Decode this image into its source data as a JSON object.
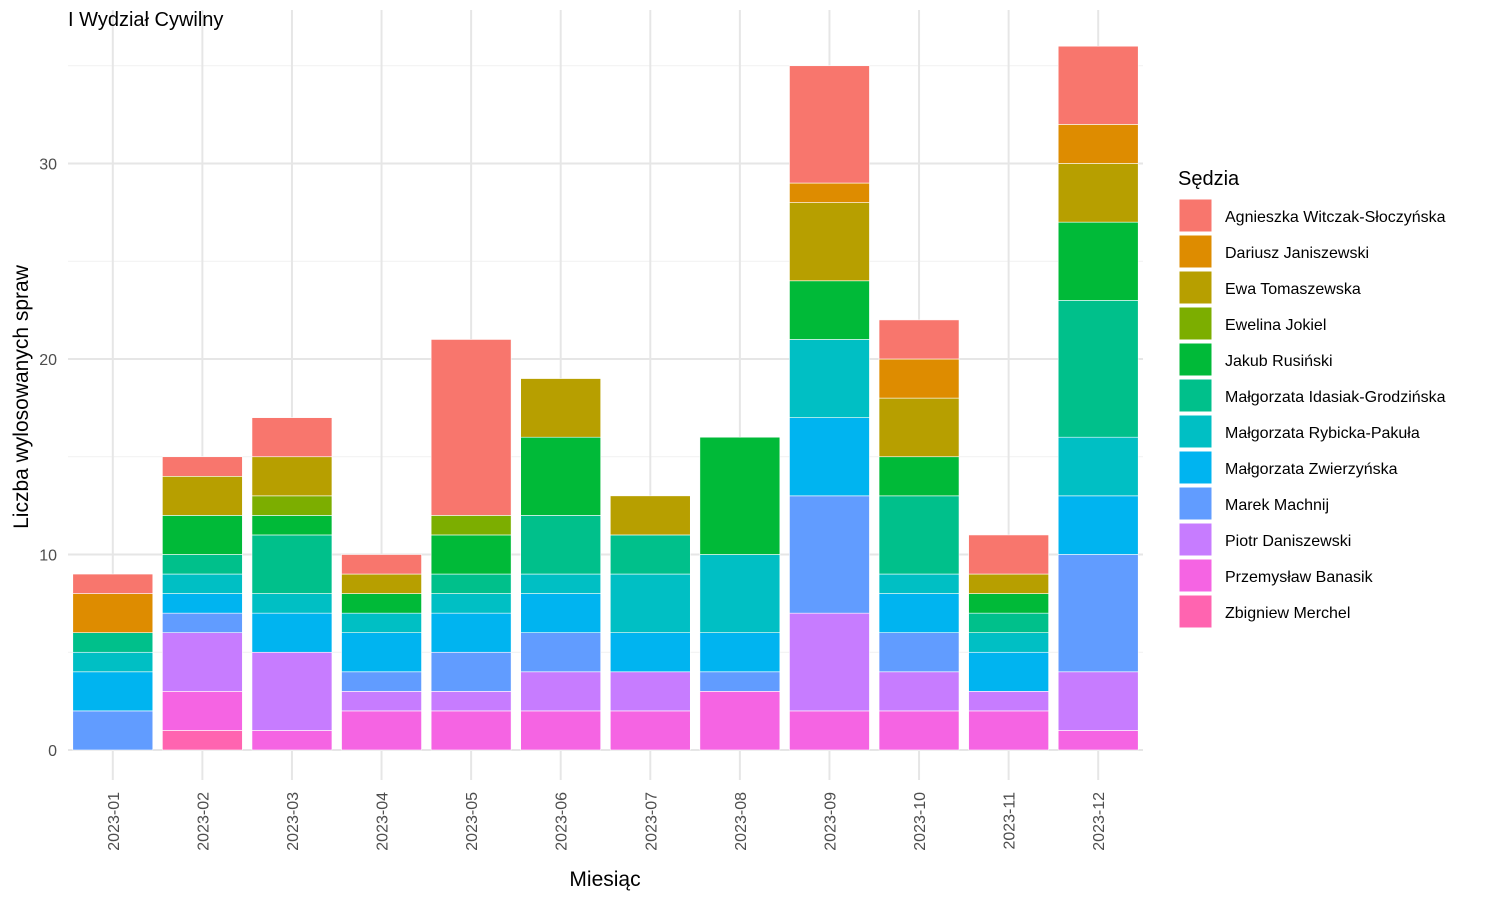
{
  "chart_data": {
    "type": "bar",
    "stacked": true,
    "title": "I Wydział Cywilny",
    "xlabel": "Miesiąc",
    "ylabel": "Liczba wylosowanych spraw",
    "ylim": [
      0,
      37.5
    ],
    "y_ticks": [
      0,
      10,
      20,
      30
    ],
    "grid": true,
    "legend_title": "Sędzia",
    "legend_position": "right",
    "categories": [
      "2023-01",
      "2023-02",
      "2023-03",
      "2023-04",
      "2023-05",
      "2023-06",
      "2023-07",
      "2023-08",
      "2023-09",
      "2023-10",
      "2023-11",
      "2023-12"
    ],
    "series": [
      {
        "name": "Agnieszka Witczak-Słoczyńska",
        "color": "#F8766D",
        "values": [
          1,
          1,
          2,
          1,
          9,
          0,
          0,
          0,
          6,
          2,
          2,
          4
        ]
      },
      {
        "name": "Dariusz Janiszewski",
        "color": "#DE8C00",
        "values": [
          2,
          0,
          0,
          0,
          0,
          0,
          0,
          0,
          1,
          2,
          0,
          2
        ]
      },
      {
        "name": "Ewa Tomaszewska",
        "color": "#B79F00",
        "values": [
          0,
          2,
          2,
          1,
          0,
          3,
          2,
          0,
          4,
          3,
          1,
          3
        ]
      },
      {
        "name": "Ewelina Jokiel",
        "color": "#7CAE00",
        "values": [
          0,
          0,
          1,
          0,
          1,
          0,
          0,
          0,
          0,
          0,
          0,
          0
        ]
      },
      {
        "name": "Jakub Rusiński",
        "color": "#00BA38",
        "values": [
          0,
          2,
          1,
          1,
          2,
          4,
          0,
          6,
          3,
          2,
          1,
          4
        ]
      },
      {
        "name": "Małgorzata Idasiak-Grodzińska",
        "color": "#00C08B",
        "values": [
          1,
          1,
          3,
          0,
          1,
          3,
          2,
          0,
          0,
          4,
          1,
          7
        ]
      },
      {
        "name": "Małgorzata Rybicka-Pakuła",
        "color": "#00BFC4",
        "values": [
          1,
          1,
          1,
          1,
          1,
          1,
          3,
          4,
          4,
          1,
          1,
          3
        ]
      },
      {
        "name": "Małgorzata Zwierzyńska",
        "color": "#00B4F0",
        "values": [
          2,
          1,
          2,
          2,
          2,
          2,
          2,
          2,
          4,
          2,
          2,
          3
        ]
      },
      {
        "name": "Marek Machnij",
        "color": "#619CFF",
        "values": [
          2,
          1,
          0,
          1,
          2,
          2,
          0,
          1,
          6,
          2,
          0,
          6
        ]
      },
      {
        "name": "Piotr Daniszewski",
        "color": "#C77CFF",
        "values": [
          0,
          3,
          4,
          1,
          1,
          2,
          2,
          0,
          5,
          2,
          1,
          3
        ]
      },
      {
        "name": "Przemysław Banasik",
        "color": "#F564E3",
        "values": [
          0,
          2,
          1,
          2,
          2,
          2,
          2,
          3,
          2,
          2,
          2,
          1
        ]
      },
      {
        "name": "Zbigniew Merchel",
        "color": "#FF64B0",
        "values": [
          0,
          1,
          0,
          0,
          0,
          0,
          0,
          0,
          0,
          0,
          0,
          0
        ]
      }
    ]
  }
}
